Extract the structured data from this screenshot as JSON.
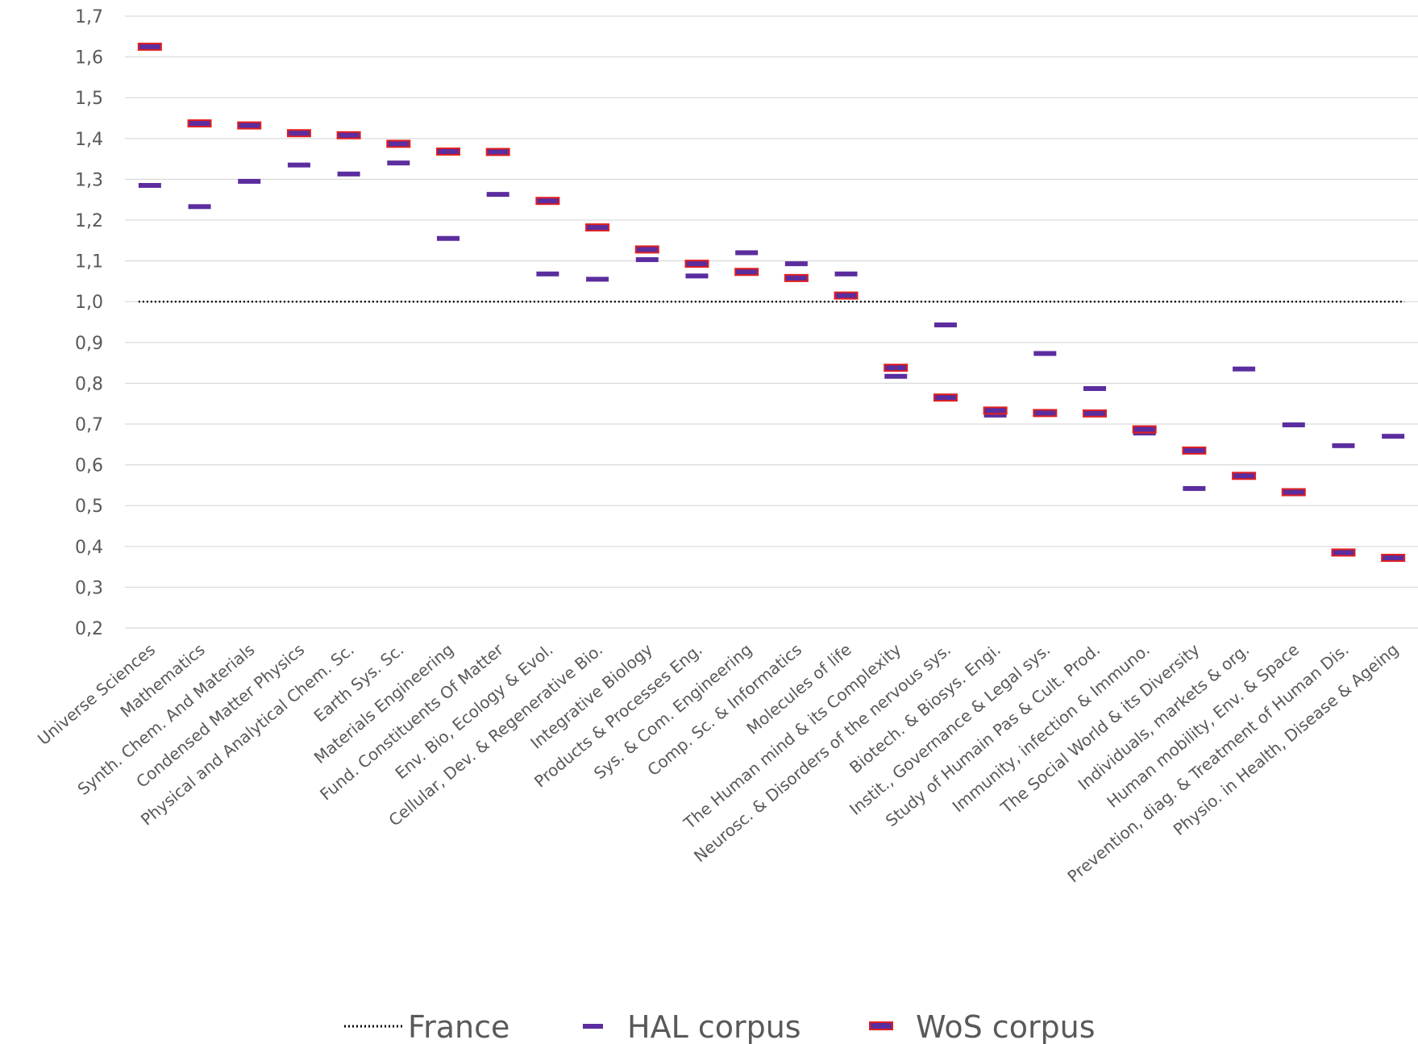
{
  "chart_data": {
    "type": "scatter",
    "ylim": [
      0.2,
      1.7
    ],
    "yticks": [
      "0,2",
      "0,3",
      "0,4",
      "0,5",
      "0,6",
      "0,7",
      "0,8",
      "0,9",
      "1,0",
      "1,1",
      "1,2",
      "1,3",
      "1,4",
      "1,5",
      "1,6",
      "1,7"
    ],
    "grid": true,
    "legend_position": "bottom",
    "categories": [
      "Universe Sciences",
      "Mathematics",
      "Synth. Chem. And Materials",
      "Condensed Matter Physics",
      "Physical and Analytical Chem. Sc.",
      "Earth Sys. Sc.",
      "Materials Engineering",
      "Fund. Constituents Of Matter",
      "Env. Bio, Ecology & Evol.",
      "Cellular, Dev. & Regenerative Bio.",
      "Integrative Biology",
      "Products &  Processes Eng.",
      "Sys. & Com. Engineering",
      "Comp. Sc. & Informatics",
      "Molecules of life",
      "The Human mind & its Complexity",
      "Neurosc. & Disorders of the nervous sys.",
      "Biotech. &  Biosys. Engi.",
      "Instit., Governance & Legal sys.",
      "Study of Humain Pas & Cult. Prod.",
      "Immunity, infection & Immuno.",
      "The Social World & its Diversity",
      "Individuals, markets & org.",
      "Human mobility, Env. & Space",
      "Prevention, diag. & Treatment of Human Dis.",
      "Physio. in Health, Disease & Ageing"
    ],
    "series": [
      {
        "name": "France",
        "color": "#000000",
        "style": "dotted-line",
        "values": [
          1.0,
          1.0,
          1.0,
          1.0,
          1.0,
          1.0,
          1.0,
          1.0,
          1.0,
          1.0,
          1.0,
          1.0,
          1.0,
          1.0,
          1.0,
          1.0,
          1.0,
          1.0,
          1.0,
          1.0,
          1.0,
          1.0,
          1.0,
          1.0,
          1.0,
          1.0
        ]
      },
      {
        "name": "HAL corpus",
        "color": "#5b2d9e",
        "style": "dash-marker",
        "values": [
          1.285,
          1.233,
          1.295,
          1.335,
          1.313,
          1.34,
          1.155,
          1.263,
          1.068,
          1.055,
          1.103,
          1.063,
          1.12,
          1.093,
          1.068,
          0.817,
          0.943,
          0.722,
          0.873,
          0.787,
          0.678,
          0.542,
          0.835,
          0.698,
          0.647,
          0.67
        ]
      },
      {
        "name": "WoS corpus",
        "color": "#5b2d9e",
        "border_color": "#e02020",
        "style": "dash-marker-bordered",
        "values": [
          1.625,
          1.437,
          1.432,
          1.413,
          1.408,
          1.387,
          1.368,
          1.367,
          1.247,
          1.182,
          1.128,
          1.093,
          1.073,
          1.058,
          1.015,
          0.838,
          0.765,
          0.733,
          0.727,
          0.726,
          0.687,
          0.635,
          0.573,
          0.533,
          0.385,
          0.372
        ]
      }
    ]
  }
}
